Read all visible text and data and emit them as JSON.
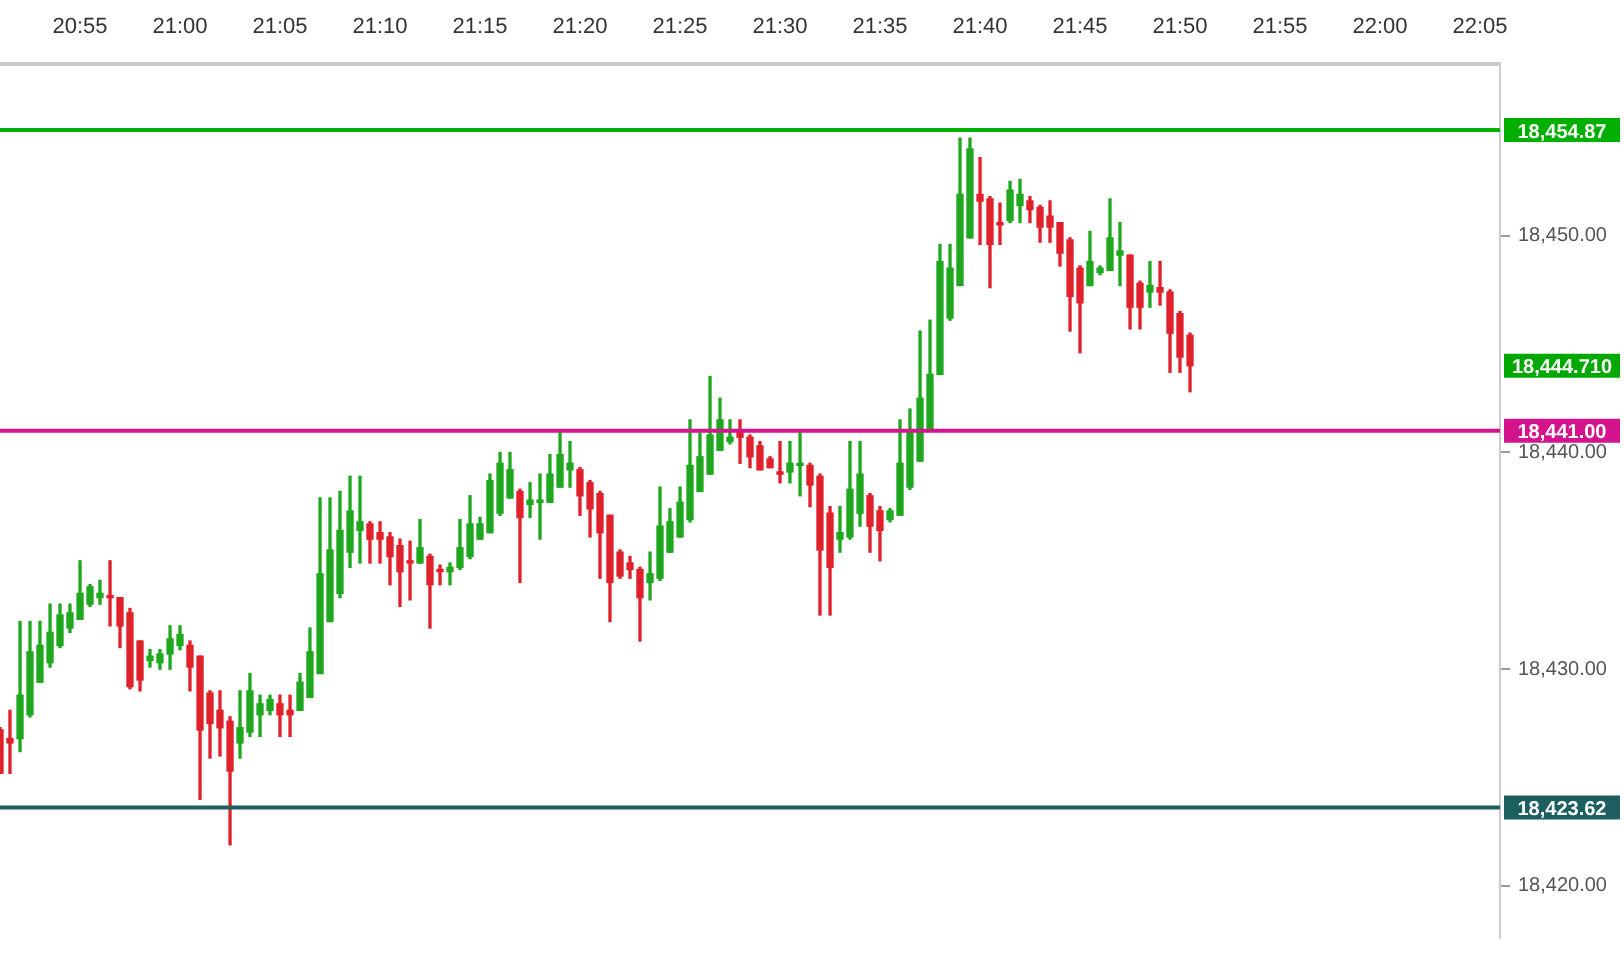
{
  "chart_data": {
    "type": "candlestick",
    "x": [
      20.85,
      20.8583,
      20.8667,
      20.875,
      20.8833,
      20.8917,
      20.9,
      20.9083,
      20.9167,
      20.925,
      20.9333,
      20.9417,
      20.95,
      20.9583,
      20.9667,
      20.975,
      20.9833,
      20.9917,
      21.0,
      21.0083,
      21.0167,
      21.025,
      21.0333,
      21.0417,
      21.05,
      21.0583,
      21.0667,
      21.075,
      21.0833,
      21.0917,
      21.1,
      21.1083,
      21.1167,
      21.125,
      21.1333,
      21.1417,
      21.15,
      21.1583,
      21.1667,
      21.175,
      21.1833,
      21.1917,
      21.2,
      21.2083,
      21.2167,
      21.225,
      21.2333,
      21.2417,
      21.25,
      21.2583,
      21.2667,
      21.275,
      21.2833,
      21.2917,
      21.3,
      21.3083,
      21.3167,
      21.325,
      21.3333,
      21.3417,
      21.35,
      21.3583,
      21.3667,
      21.375,
      21.3833,
      21.3917,
      21.4,
      21.4083,
      21.4167,
      21.425,
      21.4333,
      21.4417,
      21.45,
      21.4583,
      21.4667,
      21.475,
      21.4833,
      21.4917,
      21.5,
      21.5083,
      21.5167,
      21.525,
      21.5333,
      21.5417,
      21.55,
      21.5583,
      21.5667,
      21.575,
      21.5833,
      21.5917,
      21.6,
      21.6083,
      21.6167,
      21.625,
      21.6333,
      21.6417,
      21.65,
      21.6583,
      21.6667,
      21.675,
      21.6833,
      21.6917,
      21.7,
      21.7083,
      21.7167,
      21.725,
      21.7333,
      21.7417,
      21.75,
      21.7583,
      21.7667,
      21.775,
      21.7833,
      21.7917,
      21.8,
      21.8083,
      21.8167,
      21.825,
      21.8333,
      21.8417
    ],
    "ohlc": [
      [
        18427.2,
        18427.3,
        18425.2,
        18425.2
      ],
      [
        18426.8,
        18428.1,
        18425.2,
        18426.6
      ],
      [
        18426.8,
        18432.2,
        18426.2,
        18428.8
      ],
      [
        18427.9,
        18432.2,
        18427.8,
        18430.8
      ],
      [
        18429.4,
        18432.2,
        18429.4,
        18431.1
      ],
      [
        18430.3,
        18433.0,
        18430.1,
        18431.7
      ],
      [
        18431.1,
        18433.0,
        18431.0,
        18432.5
      ],
      [
        18431.9,
        18433.0,
        18431.7,
        18432.6
      ],
      [
        18432.3,
        18435.0,
        18432.3,
        18433.5
      ],
      [
        18433.0,
        18433.9,
        18432.9,
        18433.8
      ],
      [
        18433.3,
        18434.1,
        18433.0,
        18433.5
      ],
      [
        18433.4,
        18435.0,
        18432.0,
        18433.3
      ],
      [
        18433.3,
        18433.3,
        18431.0,
        18432.0
      ],
      [
        18432.6,
        18432.8,
        18429.1,
        18429.2
      ],
      [
        18431.3,
        18431.3,
        18429.0,
        18429.5
      ],
      [
        18430.4,
        18430.9,
        18430.1,
        18430.6
      ],
      [
        18430.3,
        18430.9,
        18430.0,
        18430.7
      ],
      [
        18430.7,
        18432.0,
        18430.0,
        18431.4
      ],
      [
        18431.1,
        18432.0,
        18430.9,
        18431.6
      ],
      [
        18431.1,
        18431.3,
        18429.0,
        18430.1
      ],
      [
        18430.6,
        18430.6,
        18424.0,
        18427.2
      ],
      [
        18428.9,
        18429.0,
        18425.9,
        18427.5
      ],
      [
        18428.1,
        18429.0,
        18426.0,
        18427.3
      ],
      [
        18427.6,
        18427.8,
        18421.9,
        18425.3
      ],
      [
        18426.6,
        18429.0,
        18425.9,
        18427.3
      ],
      [
        18427.1,
        18429.8,
        18426.9,
        18429.0
      ],
      [
        18427.9,
        18428.8,
        18426.9,
        18428.4
      ],
      [
        18428.1,
        18428.8,
        18427.9,
        18428.6
      ],
      [
        18428.4,
        18428.8,
        18426.9,
        18427.9
      ],
      [
        18428.1,
        18428.8,
        18426.9,
        18427.9
      ],
      [
        18428.1,
        18429.8,
        18428.1,
        18429.4
      ],
      [
        18428.7,
        18431.9,
        18428.7,
        18430.8
      ],
      [
        18429.8,
        18437.9,
        18429.8,
        18434.4
      ],
      [
        18432.2,
        18437.9,
        18432.2,
        18435.5
      ],
      [
        18433.5,
        18438.2,
        18433.3,
        18436.4
      ],
      [
        18435.4,
        18438.9,
        18434.7,
        18437.3
      ],
      [
        18436.4,
        18438.9,
        18434.9,
        18436.8
      ],
      [
        18436.7,
        18436.8,
        18434.9,
        18436.0
      ],
      [
        18436.3,
        18436.8,
        18434.9,
        18436.0
      ],
      [
        18436.1,
        18436.3,
        18433.9,
        18435.2
      ],
      [
        18435.7,
        18436.0,
        18432.9,
        18434.5
      ],
      [
        18435.0,
        18435.9,
        18433.2,
        18434.9
      ],
      [
        18434.9,
        18436.9,
        18434.9,
        18435.6
      ],
      [
        18435.2,
        18435.3,
        18431.9,
        18433.9
      ],
      [
        18434.6,
        18434.8,
        18433.9,
        18434.5
      ],
      [
        18434.5,
        18434.9,
        18433.9,
        18434.7
      ],
      [
        18434.7,
        18436.9,
        18434.6,
        18435.6
      ],
      [
        18435.2,
        18438.0,
        18435.1,
        18436.7
      ],
      [
        18436.0,
        18437.0,
        18436.0,
        18436.7
      ],
      [
        18436.3,
        18439.0,
        18436.3,
        18438.7
      ],
      [
        18437.2,
        18440.0,
        18437.1,
        18439.5
      ],
      [
        18437.9,
        18440.0,
        18437.9,
        18439.2
      ],
      [
        18438.2,
        18438.3,
        18434.0,
        18437.0
      ],
      [
        18437.6,
        18438.6,
        18437.0,
        18437.8
      ],
      [
        18437.7,
        18439.0,
        18436.0,
        18437.8
      ],
      [
        18437.7,
        18439.9,
        18437.7,
        18439.0
      ],
      [
        18438.4,
        18440.9,
        18438.4,
        18439.9
      ],
      [
        18439.2,
        18440.5,
        18438.4,
        18439.5
      ],
      [
        18439.2,
        18439.3,
        18437.1,
        18438.0
      ],
      [
        18438.6,
        18438.7,
        18436.1,
        18437.4
      ],
      [
        18438.1,
        18438.2,
        18434.2,
        18436.3
      ],
      [
        18437.1,
        18437.1,
        18432.2,
        18434.0
      ],
      [
        18435.4,
        18435.5,
        18434.2,
        18434.3
      ],
      [
        18434.9,
        18435.2,
        18434.2,
        18434.6
      ],
      [
        18434.6,
        18434.7,
        18431.3,
        18433.3
      ],
      [
        18434.0,
        18435.4,
        18433.2,
        18434.4
      ],
      [
        18434.2,
        18438.4,
        18434.1,
        18436.6
      ],
      [
        18435.4,
        18437.4,
        18435.4,
        18436.8
      ],
      [
        18436.1,
        18438.4,
        18436.1,
        18437.7
      ],
      [
        18436.9,
        18441.5,
        18436.8,
        18439.4
      ],
      [
        18438.2,
        18440.9,
        18438.2,
        18439.8
      ],
      [
        18439.0,
        18443.5,
        18439.0,
        18440.8
      ],
      [
        18440.1,
        18442.5,
        18440.1,
        18441.5
      ],
      [
        18440.5,
        18441.5,
        18440.4,
        18440.7
      ],
      [
        18440.9,
        18441.5,
        18439.5,
        18440.7
      ],
      [
        18440.7,
        18440.8,
        18439.3,
        18439.8
      ],
      [
        18440.3,
        18440.5,
        18439.2,
        18439.2
      ],
      [
        18439.7,
        18439.8,
        18439.3,
        18439.3
      ],
      [
        18439.1,
        18440.5,
        18438.6,
        18439.0
      ],
      [
        18439.1,
        18440.5,
        18438.6,
        18439.5
      ],
      [
        18439.4,
        18440.9,
        18438.0,
        18439.5
      ],
      [
        18439.4,
        18439.5,
        18437.5,
        18438.5
      ],
      [
        18438.9,
        18439.0,
        18432.5,
        18435.5
      ],
      [
        18437.2,
        18437.5,
        18432.5,
        18434.7
      ],
      [
        18436.0,
        18437.5,
        18435.4,
        18436.3
      ],
      [
        18436.1,
        18440.5,
        18436.0,
        18438.3
      ],
      [
        18437.2,
        18440.5,
        18436.6,
        18439.0
      ],
      [
        18438.0,
        18438.1,
        18435.4,
        18436.6
      ],
      [
        18437.3,
        18437.5,
        18435.0,
        18436.4
      ],
      [
        18436.9,
        18437.4,
        18436.8,
        18437.3
      ],
      [
        18437.1,
        18441.5,
        18437.1,
        18439.5
      ],
      [
        18438.4,
        18442.0,
        18438.3,
        18440.9
      ],
      [
        18439.6,
        18445.6,
        18439.6,
        18442.5
      ],
      [
        18441.1,
        18446.1,
        18441.1,
        18443.6
      ],
      [
        18443.6,
        18449.6,
        18443.6,
        18448.8
      ],
      [
        18446.2,
        18449.6,
        18446.1,
        18448.5
      ],
      [
        18447.7,
        18454.5,
        18447.7,
        18451.9
      ],
      [
        18449.9,
        18454.5,
        18449.9,
        18454.0
      ],
      [
        18451.9,
        18453.6,
        18449.6,
        18451.6
      ],
      [
        18451.7,
        18451.8,
        18447.6,
        18449.6
      ],
      [
        18450.6,
        18451.5,
        18449.6,
        18450.5
      ],
      [
        18450.7,
        18452.5,
        18450.6,
        18452.1
      ],
      [
        18451.4,
        18452.6,
        18450.6,
        18451.9
      ],
      [
        18451.6,
        18451.8,
        18450.6,
        18451.2
      ],
      [
        18451.3,
        18451.4,
        18449.7,
        18450.4
      ],
      [
        18450.9,
        18451.6,
        18449.7,
        18450.4
      ],
      [
        18450.6,
        18450.6,
        18448.6,
        18449.2
      ],
      [
        18449.8,
        18449.9,
        18445.6,
        18447.2
      ],
      [
        18448.5,
        18448.6,
        18444.6,
        18446.9
      ],
      [
        18447.7,
        18450.2,
        18447.7,
        18448.8
      ],
      [
        18448.3,
        18448.6,
        18448.2,
        18448.5
      ],
      [
        18448.4,
        18451.7,
        18448.4,
        18449.9
      ],
      [
        18449.1,
        18450.6,
        18447.7,
        18449.3
      ],
      [
        18449.1,
        18449.1,
        18445.7,
        18446.7
      ],
      [
        18447.8,
        18447.9,
        18445.7,
        18446.7
      ],
      [
        18447.4,
        18448.8,
        18446.7,
        18447.7
      ],
      [
        18447.6,
        18448.8,
        18446.8,
        18447.4
      ],
      [
        18447.4,
        18447.5,
        18443.7,
        18445.5
      ],
      [
        18446.4,
        18446.5,
        18443.7,
        18444.4
      ],
      [
        18445.4,
        18445.5,
        18442.8,
        18444.0
      ]
    ],
    "colors": [
      "#e0212b",
      "#e0212b",
      "#1fa81f",
      "#1fa81f",
      "#1fa81f",
      "#1fa81f",
      "#1fa81f",
      "#1fa81f",
      "#1fa81f",
      "#1fa81f",
      "#1fa81f",
      "#e0212b",
      "#e0212b",
      "#e0212b",
      "#e0212b",
      "#1fa81f",
      "#1fa81f",
      "#1fa81f",
      "#1fa81f",
      "#e0212b",
      "#e0212b",
      "#e0212b",
      "#e0212b",
      "#e0212b",
      "#1fa81f",
      "#1fa81f",
      "#1fa81f",
      "#1fa81f",
      "#e0212b",
      "#e0212b",
      "#1fa81f",
      "#1fa81f",
      "#1fa81f",
      "#1fa81f",
      "#1fa81f",
      "#1fa81f",
      "#1fa81f",
      "#e0212b",
      "#e0212b",
      "#e0212b",
      "#e0212b",
      "#e0212b",
      "#1fa81f",
      "#e0212b",
      "#e0212b",
      "#1fa81f",
      "#1fa81f",
      "#1fa81f",
      "#1fa81f",
      "#1fa81f",
      "#1fa81f",
      "#1fa81f",
      "#e0212b",
      "#1fa81f",
      "#1fa81f",
      "#1fa81f",
      "#1fa81f",
      "#1fa81f",
      "#e0212b",
      "#e0212b",
      "#e0212b",
      "#e0212b",
      "#e0212b",
      "#e0212b",
      "#e0212b",
      "#1fa81f",
      "#1fa81f",
      "#1fa81f",
      "#1fa81f",
      "#1fa81f",
      "#1fa81f",
      "#1fa81f",
      "#1fa81f",
      "#1fa81f",
      "#e0212b",
      "#e0212b",
      "#e0212b",
      "#e0212b",
      "#e0212b",
      "#1fa81f",
      "#1fa81f",
      "#e0212b",
      "#e0212b",
      "#e0212b",
      "#1fa81f",
      "#1fa81f",
      "#1fa81f",
      "#e0212b",
      "#e0212b",
      "#1fa81f",
      "#1fa81f",
      "#1fa81f",
      "#1fa81f",
      "#1fa81f",
      "#1fa81f",
      "#1fa81f",
      "#1fa81f",
      "#1fa81f",
      "#e0212b",
      "#e0212b",
      "#e0212b",
      "#1fa81f",
      "#1fa81f",
      "#e0212b",
      "#e0212b",
      "#e0212b",
      "#e0212b",
      "#e0212b",
      "#e0212b",
      "#1fa81f",
      "#1fa81f",
      "#1fa81f",
      "#1fa81f",
      "#e0212b",
      "#e0212b",
      "#1fa81f",
      "#e0212b",
      "#e0212b",
      "#e0212b",
      "#e0212b"
    ],
    "xlim": [
      20.85,
      22.1
    ],
    "xticks": [
      {
        "value": 20.9167,
        "label": "20:55"
      },
      {
        "value": 21.0,
        "label": "21:00"
      },
      {
        "value": 21.0833,
        "label": "21:05"
      },
      {
        "value": 21.1667,
        "label": "21:10"
      },
      {
        "value": 21.25,
        "label": "21:15"
      },
      {
        "value": 21.3333,
        "label": "21:20"
      },
      {
        "value": 21.4167,
        "label": "21:25"
      },
      {
        "value": 21.5,
        "label": "21:30"
      },
      {
        "value": 21.5833,
        "label": "21:35"
      },
      {
        "value": 21.6667,
        "label": "21:40"
      },
      {
        "value": 21.75,
        "label": "21:45"
      },
      {
        "value": 21.8333,
        "label": "21:50"
      },
      {
        "value": 21.9167,
        "label": "21:55"
      },
      {
        "value": 22.0,
        "label": "22:00"
      },
      {
        "value": 22.0833,
        "label": "22:05"
      }
    ],
    "ylim": [
      18417.6,
      18457.9
    ],
    "yticks": [
      {
        "value": 18420,
        "label": "18,420.00"
      },
      {
        "value": 18430,
        "label": "18,430.00"
      },
      {
        "value": 18440,
        "label": "18,440.00"
      },
      {
        "value": 18450,
        "label": "18,450.00"
      }
    ],
    "ref_lines": [
      {
        "axis": "y",
        "value": 18454.87,
        "label": "18,454.87",
        "color": "#00b000"
      },
      {
        "axis": "y",
        "value": 18441.0,
        "label": "18,441.00",
        "color": "#d4148c"
      },
      {
        "axis": "y",
        "value": 18423.62,
        "label": "18,423.62",
        "color": "#1d5e5e"
      }
    ],
    "annotations": [
      "18,444.710"
    ],
    "legend": false
  }
}
